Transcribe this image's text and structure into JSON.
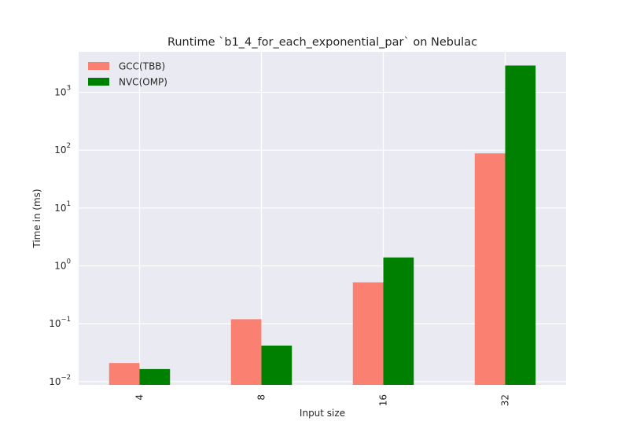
{
  "chart_data": {
    "type": "bar",
    "title": "Runtime `b1_4_for_each_exponential_par` on Nebulac",
    "xlabel": "Input size",
    "ylabel": "Time in (ms)",
    "yscale": "log",
    "ylim": [
      0.0088,
      5000
    ],
    "yticks": [
      {
        "value": 0.01,
        "base": "10",
        "exp": "−2"
      },
      {
        "value": 0.1,
        "base": "10",
        "exp": "−1"
      },
      {
        "value": 1,
        "base": "10",
        "exp": "0"
      },
      {
        "value": 10,
        "base": "10",
        "exp": "1"
      },
      {
        "value": 100,
        "base": "10",
        "exp": "2"
      },
      {
        "value": 1000,
        "base": "10",
        "exp": "3"
      }
    ],
    "categories": [
      "4",
      "8",
      "16",
      "32"
    ],
    "series": [
      {
        "name": "GCC(TBB)",
        "color": "#fa8072",
        "values": [
          0.021,
          0.12,
          0.52,
          88
        ]
      },
      {
        "name": "NVC(OMP)",
        "color": "#008000",
        "values": [
          0.0165,
          0.042,
          1.4,
          2900
        ]
      }
    ],
    "grid": true,
    "legend": "top-left",
    "plot_background": "#eaeaf2"
  }
}
